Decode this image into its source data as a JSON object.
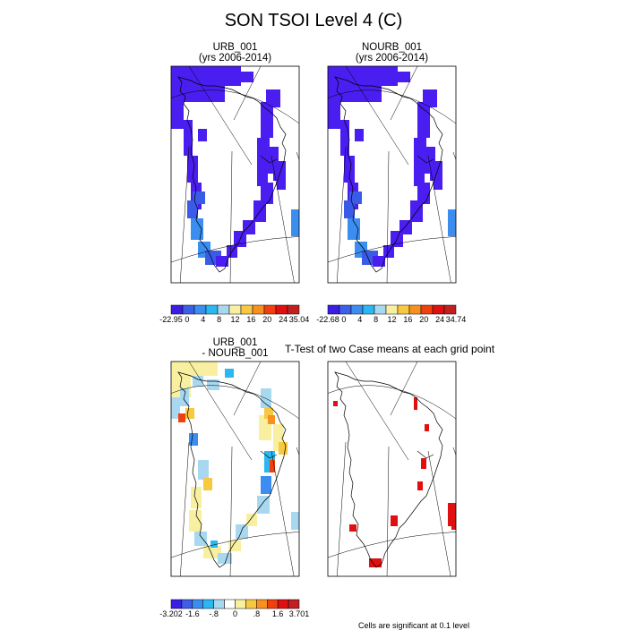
{
  "title": "SON TSOI Level 4 (C)",
  "panels": {
    "urb": {
      "line1": "URB_001",
      "line2": "(yrs 2006-2014)"
    },
    "nourb": {
      "line1": "NOURB_001",
      "line2": "(yrs 2006-2014)"
    },
    "diff": {
      "line1": "URB_001",
      "line2": "- NOURB_001"
    },
    "ttest": {
      "title": "T-Test of two Case means at each grid point"
    }
  },
  "colorbars": {
    "urb": {
      "labels": [
        "-22.95",
        "0",
        "4",
        "8",
        "12",
        "16",
        "20",
        "24",
        "35.04"
      ]
    },
    "nourb": {
      "labels": [
        "-22.68",
        "0",
        "4",
        "8",
        "12",
        "16",
        "20",
        "24",
        "34.74"
      ]
    },
    "diff": {
      "labels": [
        "-3.202",
        "-1.6",
        "-.8",
        "0",
        ".8",
        "1.6",
        "3.701"
      ]
    }
  },
  "footnote": "Cells are significant at 0.1 level",
  "colors": {
    "abs_palette": [
      "#3a1ee6",
      "#3d5ee8",
      "#3b8ef0",
      "#2bb8f0",
      "#a8d8f0",
      "#f8f0a0",
      "#f8c840",
      "#f89020",
      "#f04010",
      "#e01010",
      "#c02020"
    ],
    "diff_palette": [
      "#3a1ee6",
      "#3d5ee8",
      "#3b8ef0",
      "#2bb8f0",
      "#a8d8f0",
      "#ffffff",
      "#f8f0a0",
      "#f8c840",
      "#f89020",
      "#f04010",
      "#e01010",
      "#c02020"
    ],
    "cold": "#4a1ef0",
    "mid": "#3a5ae8",
    "light": "#3b8ef0",
    "sig": "#e01010"
  }
}
